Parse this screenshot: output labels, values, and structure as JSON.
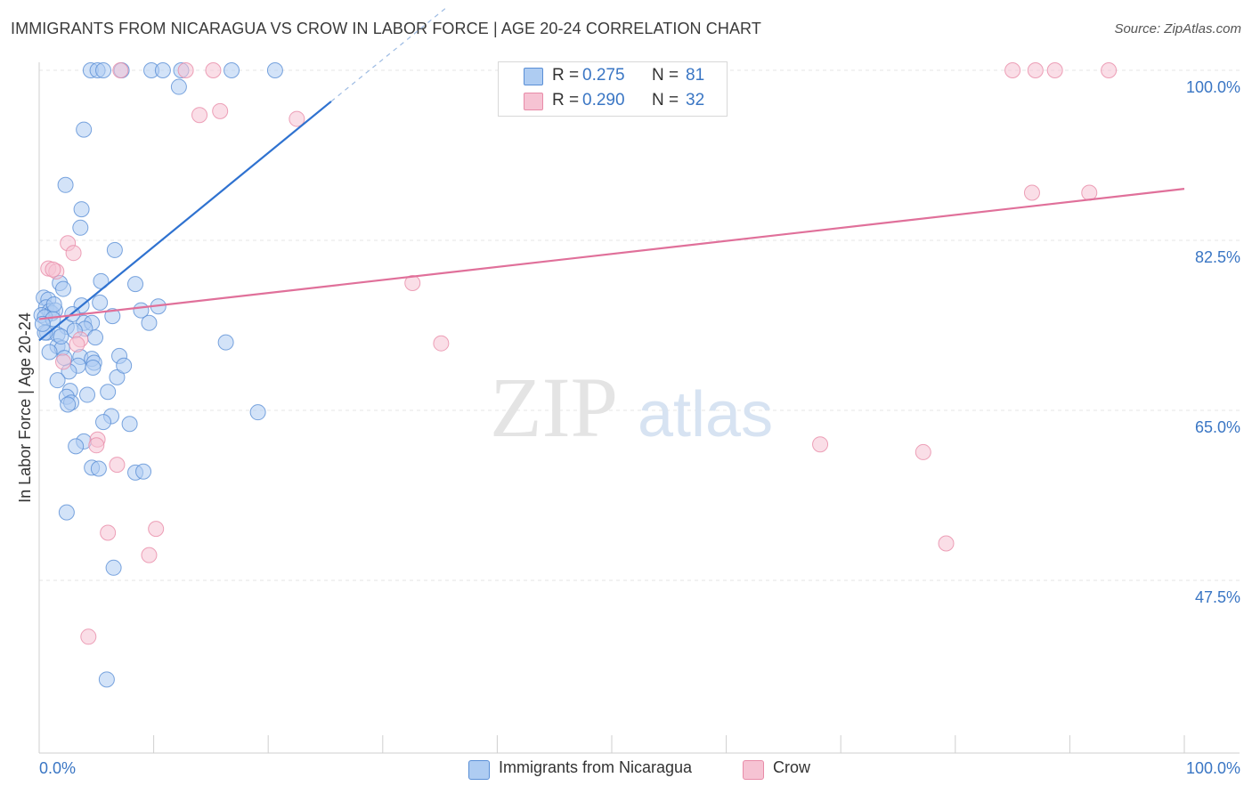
{
  "title": "IMMIGRANTS FROM NICARAGUA VS CROW IN LABOR FORCE | AGE 20-24 CORRELATION CHART",
  "source": "Source: ZipAtlas.com",
  "watermark": {
    "zip": "ZIP",
    "atlas": "atlas"
  },
  "legend": {
    "r_label": "R =",
    "n_label": "N =",
    "rows": [
      {
        "name": "Immigrants from Nicaragua",
        "r": "0.275",
        "n": "81"
      },
      {
        "name": "Crow",
        "r": "0.290",
        "n": "32"
      }
    ]
  },
  "colors": {
    "blue_fill": "#aeccf2",
    "blue_stroke": "#5a8fd6",
    "blue_line": "#2f72d0",
    "pink_fill": "#f6c3d3",
    "pink_stroke": "#e88ba8",
    "pink_line": "#e0709a",
    "axis_text": "#3a76c4"
  },
  "chart_data": {
    "type": "scatter",
    "title": "IMMIGRANTS FROM NICARAGUA VS CROW IN LABOR FORCE | AGE 20-24 CORRELATION CHART",
    "xlabel": "",
    "ylabel": "In Labor Force | Age 20-24",
    "xlim": [
      0,
      100
    ],
    "ylim": [
      33,
      102
    ],
    "x_tick_labels": [
      "0.0%",
      "100.0%"
    ],
    "y_ticks": [
      47.5,
      65.0,
      82.5,
      100.0
    ],
    "y_tick_labels": [
      "47.5%",
      "65.0%",
      "82.5%",
      "100.0%"
    ],
    "grid": true,
    "series": [
      {
        "name": "Immigrants from Nicaragua",
        "color": "blue",
        "points": [
          [
            4.5,
            100
          ],
          [
            5.1,
            100
          ],
          [
            5.6,
            100
          ],
          [
            7.2,
            100
          ],
          [
            9.8,
            100
          ],
          [
            10.8,
            100
          ],
          [
            12.4,
            100
          ],
          [
            16.8,
            100
          ],
          [
            20.6,
            100
          ],
          [
            12.2,
            98.3
          ],
          [
            3.9,
            93.9
          ],
          [
            2.3,
            88.2
          ],
          [
            3.7,
            85.7
          ],
          [
            3.6,
            83.8
          ],
          [
            6.6,
            81.5
          ],
          [
            5.4,
            78.3
          ],
          [
            8.4,
            78.0
          ],
          [
            1.8,
            78.1
          ],
          [
            2.1,
            77.5
          ],
          [
            0.4,
            76.6
          ],
          [
            0.8,
            76.4
          ],
          [
            5.3,
            76.1
          ],
          [
            3.7,
            75.8
          ],
          [
            10.4,
            75.7
          ],
          [
            8.9,
            75.3
          ],
          [
            0.6,
            75.6
          ],
          [
            0.9,
            75.2
          ],
          [
            1.1,
            75.0
          ],
          [
            1.4,
            75.3
          ],
          [
            0.2,
            74.8
          ],
          [
            0.5,
            74.6
          ],
          [
            6.4,
            74.7
          ],
          [
            3.9,
            74.0
          ],
          [
            4.6,
            74.0
          ],
          [
            2.4,
            73.6
          ],
          [
            4.0,
            73.4
          ],
          [
            0.7,
            73.0
          ],
          [
            1.6,
            72.8
          ],
          [
            9.6,
            74.0
          ],
          [
            16.3,
            72.0
          ],
          [
            1.6,
            71.6
          ],
          [
            2.0,
            71.4
          ],
          [
            0.9,
            71.0
          ],
          [
            3.6,
            70.5
          ],
          [
            4.6,
            70.3
          ],
          [
            7.0,
            70.6
          ],
          [
            4.8,
            69.9
          ],
          [
            3.4,
            69.6
          ],
          [
            2.6,
            69.0
          ],
          [
            4.7,
            69.4
          ],
          [
            6.8,
            68.4
          ],
          [
            1.6,
            68.1
          ],
          [
            7.4,
            69.6
          ],
          [
            2.7,
            67.0
          ],
          [
            6.0,
            66.9
          ],
          [
            4.2,
            66.6
          ],
          [
            2.4,
            66.4
          ],
          [
            2.8,
            65.8
          ],
          [
            2.5,
            65.6
          ],
          [
            19.1,
            64.8
          ],
          [
            6.3,
            64.4
          ],
          [
            5.6,
            63.8
          ],
          [
            7.9,
            63.6
          ],
          [
            3.9,
            61.8
          ],
          [
            3.2,
            61.3
          ],
          [
            4.6,
            59.1
          ],
          [
            5.2,
            59.0
          ],
          [
            8.4,
            58.6
          ],
          [
            9.1,
            58.7
          ],
          [
            2.4,
            54.5
          ],
          [
            6.5,
            48.8
          ],
          [
            5.9,
            37.3
          ],
          [
            0.5,
            73.0
          ],
          [
            1.2,
            74.4
          ],
          [
            2.9,
            74.9
          ],
          [
            0.3,
            73.9
          ],
          [
            1.9,
            72.6
          ],
          [
            3.1,
            73.2
          ],
          [
            2.2,
            70.4
          ],
          [
            4.9,
            72.5
          ],
          [
            1.3,
            75.9
          ]
        ]
      },
      {
        "name": "Crow",
        "color": "pink",
        "points": [
          [
            7.1,
            100
          ],
          [
            12.8,
            100
          ],
          [
            15.2,
            100
          ],
          [
            85.0,
            100
          ],
          [
            87.0,
            100
          ],
          [
            88.7,
            100
          ],
          [
            93.4,
            100
          ],
          [
            14.0,
            95.4
          ],
          [
            15.8,
            95.8
          ],
          [
            22.5,
            95.0
          ],
          [
            86.7,
            87.4
          ],
          [
            91.7,
            87.4
          ],
          [
            2.5,
            82.2
          ],
          [
            3.0,
            81.2
          ],
          [
            0.8,
            79.6
          ],
          [
            1.5,
            79.3
          ],
          [
            32.6,
            78.1
          ],
          [
            3.6,
            72.3
          ],
          [
            3.3,
            71.8
          ],
          [
            35.1,
            71.9
          ],
          [
            2.1,
            70.0
          ],
          [
            5.1,
            62.0
          ],
          [
            5.0,
            61.4
          ],
          [
            68.2,
            61.5
          ],
          [
            77.2,
            60.7
          ],
          [
            6.8,
            59.4
          ],
          [
            6.0,
            52.4
          ],
          [
            10.2,
            52.8
          ],
          [
            79.2,
            51.3
          ],
          [
            9.6,
            50.1
          ],
          [
            4.3,
            41.7
          ],
          [
            1.2,
            79.5
          ]
        ]
      }
    ],
    "trend_lines": [
      {
        "series": "Immigrants from Nicaragua",
        "x0": 0,
        "y0": 72.2,
        "x1": 25.5,
        "y1": 96.8,
        "x_dash_end": 35.5,
        "y_dash_end": 106.4
      },
      {
        "series": "Crow",
        "x0": 0,
        "y0": 74.4,
        "x1": 100,
        "y1": 87.8
      }
    ]
  }
}
